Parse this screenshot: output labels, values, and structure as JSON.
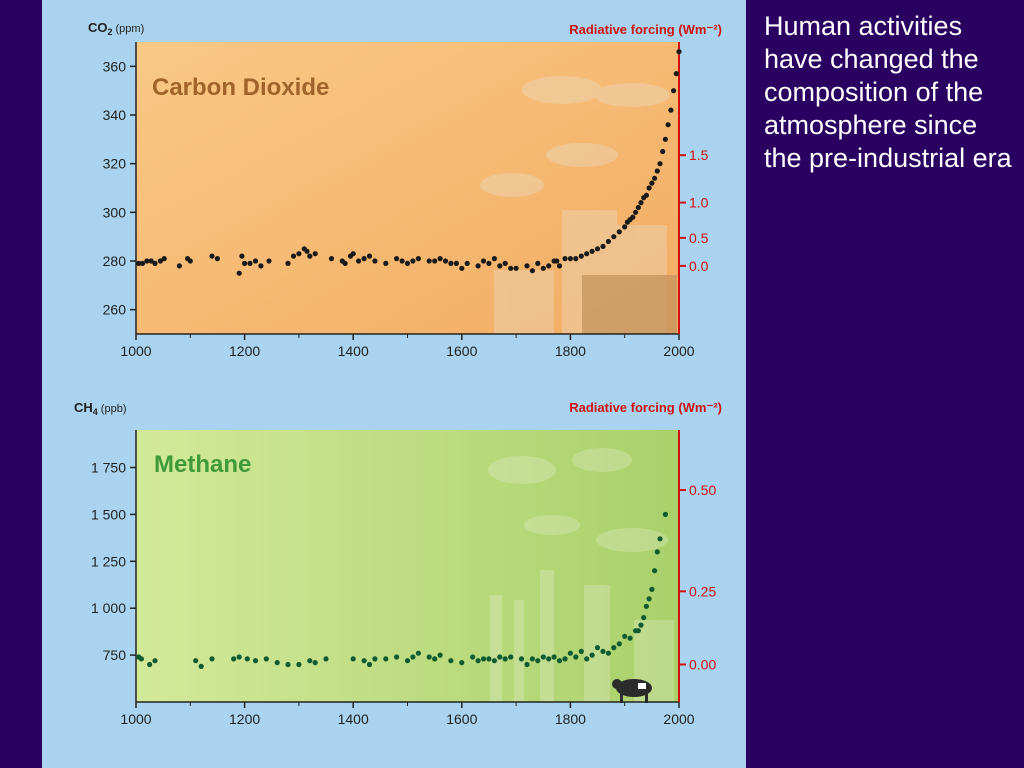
{
  "caption": "Human activities have changed the composition of the atmosphere since the pre-industrial era",
  "colors": {
    "background": "#2a0060",
    "panel": "#a9d3ee",
    "co2_plot": "#f4b870",
    "ch4_plot": "#c5e08a",
    "forcing_axis": "#d01010",
    "co2_points": "#1a1a1a",
    "ch4_points": "#0f5a30"
  },
  "chart_data": [
    {
      "type": "scatter",
      "title": "Carbon Dioxide",
      "ylabel": "CO2 (ppm)",
      "ylabel_main": "CO",
      "ylabel_sub": "2",
      "ylabel_unit": "(ppm)",
      "y2label": "Radiative forcing (Wm⁻²)",
      "xlim": [
        1000,
        2000
      ],
      "ylim": [
        250,
        370
      ],
      "xticks": [
        1000,
        1200,
        1400,
        1600,
        1800,
        2000
      ],
      "yticks": [
        260,
        280,
        300,
        320,
        340,
        360
      ],
      "y2ticks": [
        {
          "label": "0.0",
          "ppm": 278
        },
        {
          "label": "0.5",
          "ppm": 289.5
        },
        {
          "label": "1.0",
          "ppm": 304
        },
        {
          "label": "1.5",
          "ppm": 323.5
        }
      ],
      "x": [
        1005,
        1012,
        1020,
        1028,
        1035,
        1045,
        1052,
        1080,
        1095,
        1100,
        1140,
        1150,
        1190,
        1195,
        1200,
        1210,
        1220,
        1230,
        1245,
        1280,
        1290,
        1300,
        1310,
        1315,
        1320,
        1330,
        1360,
        1380,
        1385,
        1395,
        1400,
        1410,
        1420,
        1430,
        1440,
        1460,
        1480,
        1490,
        1500,
        1510,
        1520,
        1540,
        1550,
        1560,
        1570,
        1580,
        1590,
        1600,
        1610,
        1630,
        1640,
        1650,
        1660,
        1670,
        1680,
        1690,
        1700,
        1720,
        1730,
        1740,
        1750,
        1760,
        1770,
        1775,
        1780,
        1790,
        1800,
        1810,
        1820,
        1830,
        1840,
        1850,
        1860,
        1870,
        1880,
        1890,
        1900,
        1905,
        1910,
        1915,
        1920,
        1925,
        1930,
        1935,
        1940,
        1945,
        1950,
        1955,
        1960,
        1965,
        1970,
        1975,
        1980,
        1985,
        1990,
        1995,
        2000
      ],
      "y": [
        279,
        279,
        280,
        280,
        279,
        280,
        281,
        278,
        281,
        280,
        282,
        281,
        275,
        282,
        279,
        279,
        280,
        278,
        280,
        279,
        282,
        283,
        285,
        284,
        282,
        283,
        281,
        280,
        279,
        282,
        283,
        280,
        281,
        282,
        280,
        279,
        281,
        280,
        279,
        280,
        281,
        280,
        280,
        281,
        280,
        279,
        279,
        277,
        279,
        278,
        280,
        279,
        281,
        278,
        279,
        277,
        277,
        278,
        276,
        279,
        277,
        278,
        280,
        280,
        278,
        281,
        281,
        281,
        282,
        283,
        284,
        285,
        286,
        288,
        290,
        292,
        294,
        296,
        297,
        298,
        300,
        302,
        304,
        306,
        307,
        310,
        312,
        314,
        317,
        320,
        325,
        330,
        336,
        342,
        350,
        357,
        366
      ]
    },
    {
      "type": "scatter",
      "title": "Methane",
      "ylabel": "CH4 (ppb)",
      "ylabel_main": "CH",
      "ylabel_sub": "4",
      "ylabel_unit": "(ppb)",
      "y2label": "Radiative forcing (Wm⁻²)",
      "xlim": [
        1000,
        2000
      ],
      "ylim": [
        500,
        1950
      ],
      "xticks": [
        1000,
        1200,
        1400,
        1600,
        1800,
        2000
      ],
      "yticks": [
        750,
        1000,
        1250,
        1500,
        1750
      ],
      "ytick_labels": [
        "750",
        "1 000",
        "1 250",
        "1 500",
        "1 750"
      ],
      "y2ticks": [
        {
          "label": "0.00",
          "ppb": 700
        },
        {
          "label": "0.25",
          "ppb": 1090
        },
        {
          "label": "0.50",
          "ppb": 1630
        }
      ],
      "x": [
        1005,
        1010,
        1025,
        1035,
        1110,
        1120,
        1140,
        1180,
        1190,
        1205,
        1220,
        1240,
        1260,
        1280,
        1300,
        1320,
        1330,
        1350,
        1400,
        1420,
        1430,
        1440,
        1460,
        1480,
        1500,
        1510,
        1520,
        1540,
        1550,
        1560,
        1580,
        1600,
        1620,
        1630,
        1640,
        1650,
        1660,
        1670,
        1680,
        1690,
        1710,
        1720,
        1730,
        1740,
        1750,
        1760,
        1770,
        1780,
        1790,
        1800,
        1810,
        1820,
        1830,
        1840,
        1850,
        1860,
        1870,
        1880,
        1890,
        1900,
        1910,
        1920,
        1925,
        1930,
        1935,
        1940,
        1945,
        1950,
        1955,
        1960,
        1965,
        1975
      ],
      "y": [
        740,
        730,
        700,
        720,
        720,
        690,
        730,
        730,
        740,
        730,
        720,
        730,
        710,
        700,
        700,
        720,
        710,
        730,
        730,
        720,
        700,
        730,
        730,
        740,
        720,
        740,
        760,
        740,
        730,
        750,
        720,
        710,
        740,
        720,
        730,
        730,
        720,
        740,
        730,
        740,
        730,
        700,
        730,
        720,
        740,
        730,
        740,
        720,
        730,
        760,
        740,
        770,
        730,
        750,
        790,
        770,
        760,
        790,
        810,
        850,
        840,
        880,
        880,
        910,
        950,
        1010,
        1050,
        1100,
        1200,
        1300,
        1370,
        1500
      ]
    }
  ]
}
